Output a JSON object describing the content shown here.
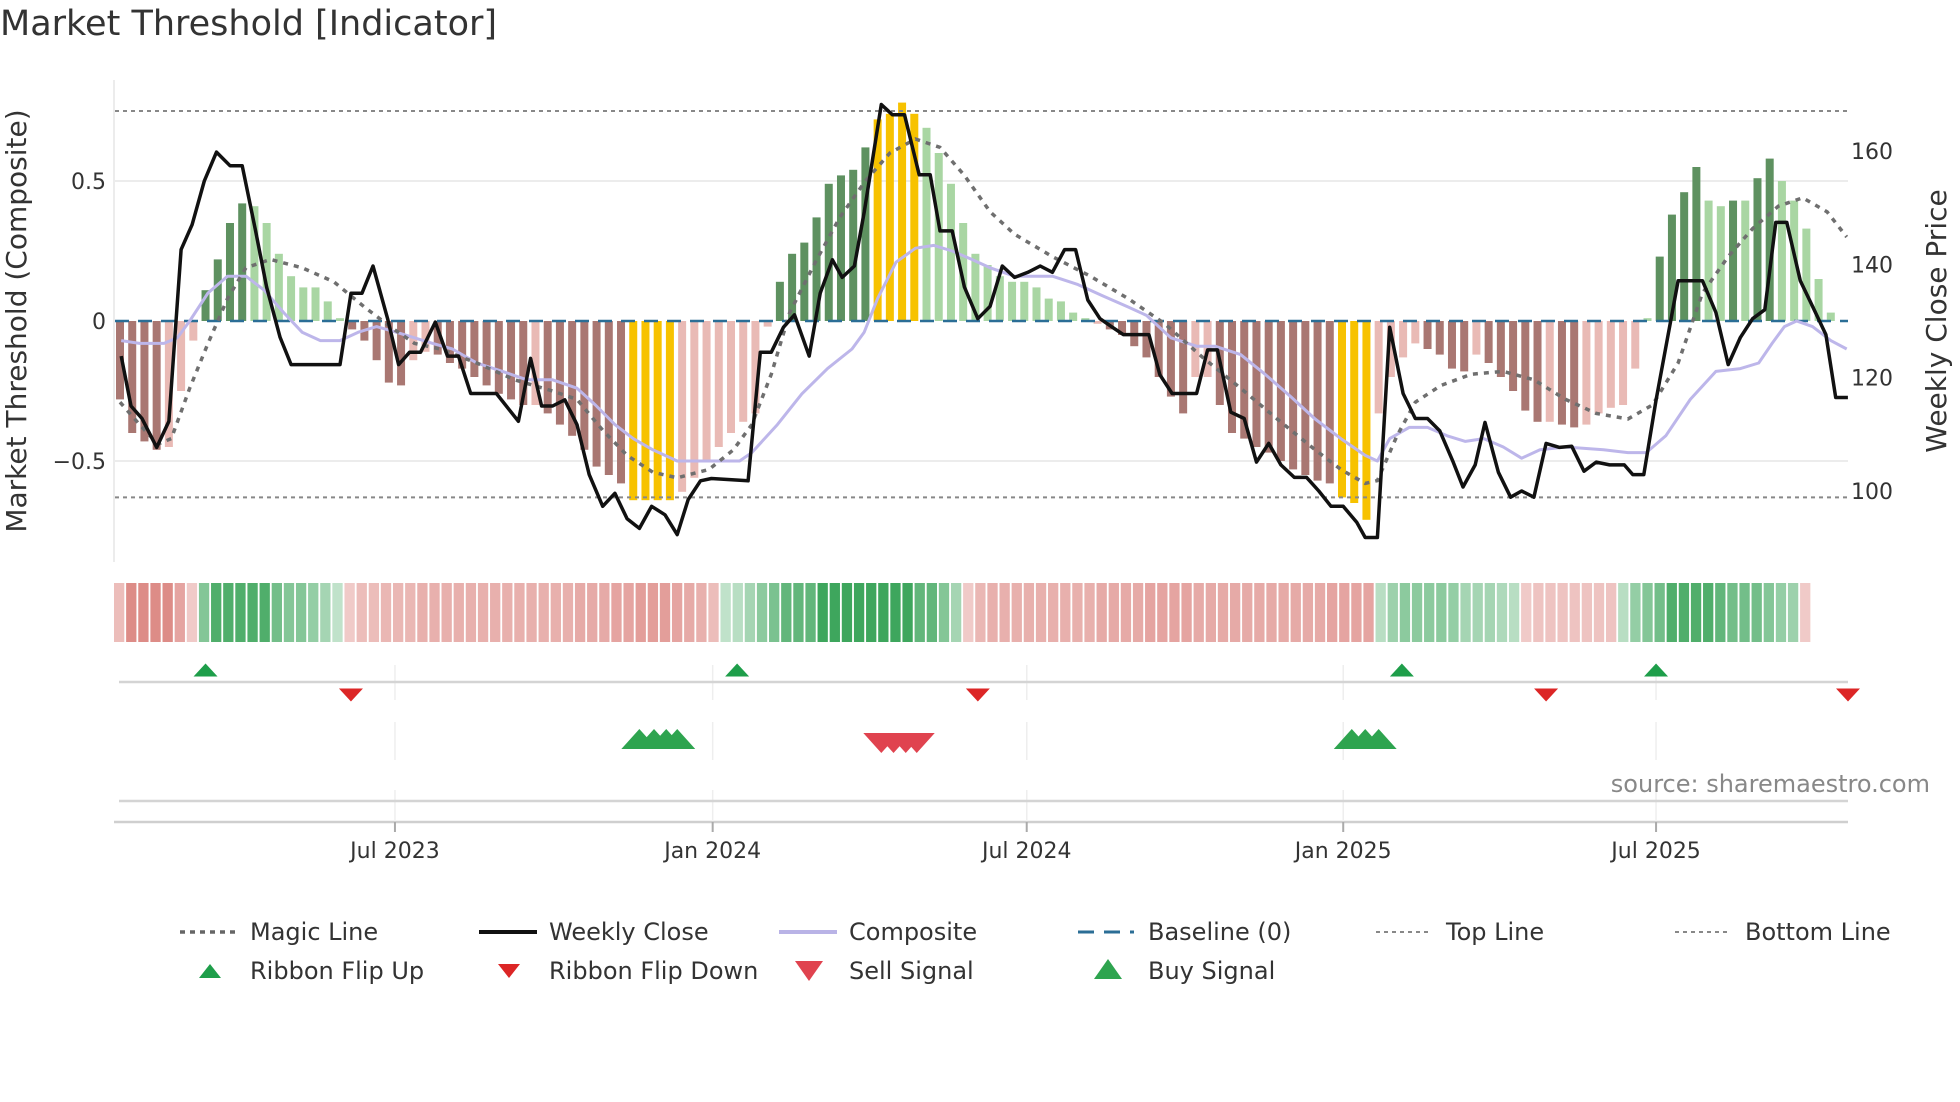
{
  "title": "Market Threshold [Indicator]",
  "source": "source: sharemaestro.com",
  "chart_data": {
    "type": "bar+line",
    "title": "Market Threshold [Indicator]",
    "ylabel": "Market Threshold (Composite)",
    "y2label": "Weekly Close Price",
    "ylim": [
      -0.85,
      0.85
    ],
    "y2lim": [
      88,
      170
    ],
    "yticks": [
      {
        "v": 0.5,
        "label": "0.5"
      },
      {
        "v": 0,
        "label": "0"
      },
      {
        "v": -0.5,
        "label": "−0.5"
      }
    ],
    "y2ticks": [
      {
        "v": 160,
        "label": "160"
      },
      {
        "v": 140,
        "label": "140"
      },
      {
        "v": 120,
        "label": "120"
      },
      {
        "v": 100,
        "label": "100"
      }
    ],
    "xticks": [
      {
        "week": 22.5,
        "label": "Jul 2023"
      },
      {
        "week": 48.5,
        "label": "Jan 2024"
      },
      {
        "week": 74.2,
        "label": "Jul 2024"
      },
      {
        "week": 100.1,
        "label": "Jan 2025"
      },
      {
        "week": 125.7,
        "label": "Jul 2025"
      }
    ],
    "top_line": 0.75,
    "bottom_line": -0.63,
    "baseline": 0,
    "extreme_thresholds": {
      "upper": 0.7,
      "lower": -0.62
    },
    "composite_bars": [
      -0.28,
      -0.4,
      -0.43,
      -0.46,
      -0.45,
      -0.25,
      -0.07,
      0.11,
      0.22,
      0.35,
      0.42,
      0.41,
      0.35,
      0.24,
      0.16,
      0.12,
      0.12,
      0.07,
      0.01,
      -0.03,
      -0.07,
      -0.14,
      -0.22,
      -0.23,
      -0.14,
      -0.11,
      -0.12,
      -0.15,
      -0.17,
      -0.2,
      -0.23,
      -0.26,
      -0.28,
      -0.3,
      -0.3,
      -0.33,
      -0.37,
      -0.41,
      -0.46,
      -0.52,
      -0.55,
      -0.58,
      -0.64,
      -0.64,
      -0.64,
      -0.64,
      -0.61,
      -0.56,
      -0.5,
      -0.45,
      -0.4,
      -0.36,
      -0.33,
      -0.02,
      0.14,
      0.24,
      0.28,
      0.37,
      0.49,
      0.52,
      0.54,
      0.62,
      0.72,
      0.74,
      0.78,
      0.74,
      0.69,
      0.6,
      0.49,
      0.35,
      0.24,
      0.2,
      0.16,
      0.14,
      0.14,
      0.12,
      0.08,
      0.07,
      0.03,
      0.01,
      -0.01,
      -0.03,
      -0.05,
      -0.09,
      -0.13,
      -0.2,
      -0.27,
      -0.33,
      -0.2,
      -0.2,
      -0.3,
      -0.4,
      -0.42,
      -0.45,
      -0.47,
      -0.5,
      -0.53,
      -0.55,
      -0.57,
      -0.58,
      -0.63,
      -0.65,
      -0.71,
      -0.33,
      -0.2,
      -0.13,
      -0.08,
      -0.1,
      -0.12,
      -0.17,
      -0.18,
      -0.12,
      -0.15,
      -0.2,
      -0.25,
      -0.32,
      -0.36,
      -0.36,
      -0.37,
      -0.38,
      -0.37,
      -0.33,
      -0.31,
      -0.3,
      -0.17,
      0.01,
      0.23,
      0.38,
      0.46,
      0.55,
      0.43,
      0.41,
      0.43,
      0.43,
      0.51,
      0.58,
      0.5,
      0.43,
      0.33,
      0.15,
      0.03
    ],
    "weekly_close": [
      [
        0.1,
        123.8
      ],
      [
        0.9,
        115.0
      ],
      [
        1.8,
        112.8
      ],
      [
        3.0,
        107.7
      ],
      [
        4.0,
        112.3
      ],
      [
        5.0,
        142.6
      ],
      [
        5.9,
        147.0
      ],
      [
        6.9,
        154.7
      ],
      [
        7.9,
        159.8
      ],
      [
        9.0,
        157.4
      ],
      [
        10.0,
        157.4
      ],
      [
        11.1,
        145.9
      ],
      [
        12.0,
        136.0
      ],
      [
        13.1,
        127.1
      ],
      [
        14.0,
        122.3
      ],
      [
        18.0,
        122.3
      ],
      [
        18.9,
        134.9
      ],
      [
        19.8,
        134.9
      ],
      [
        20.7,
        139.7
      ],
      [
        21.9,
        130.4
      ],
      [
        22.8,
        122.3
      ],
      [
        23.7,
        124.5
      ],
      [
        24.6,
        124.5
      ],
      [
        25.8,
        129.8
      ],
      [
        26.8,
        123.8
      ],
      [
        27.7,
        123.8
      ],
      [
        28.7,
        117.2
      ],
      [
        30.8,
        117.2
      ],
      [
        32.6,
        112.3
      ],
      [
        33.6,
        123.4
      ],
      [
        34.5,
        115.0
      ],
      [
        35.4,
        115.0
      ],
      [
        36.4,
        116.1
      ],
      [
        37.4,
        111.7
      ],
      [
        38.4,
        102.9
      ],
      [
        39.5,
        97.3
      ],
      [
        40.5,
        99.6
      ],
      [
        41.5,
        95.1
      ],
      [
        42.5,
        93.4
      ],
      [
        43.5,
        97.3
      ],
      [
        44.6,
        95.8
      ],
      [
        45.6,
        92.3
      ],
      [
        46.5,
        98.5
      ],
      [
        47.5,
        101.8
      ],
      [
        48.4,
        102.2
      ],
      [
        51.4,
        101.8
      ],
      [
        52.4,
        124.5
      ],
      [
        53.3,
        124.5
      ],
      [
        54.3,
        128.9
      ],
      [
        55.2,
        131.1
      ],
      [
        56.4,
        123.8
      ],
      [
        57.3,
        134.9
      ],
      [
        58.3,
        140.8
      ],
      [
        59.1,
        137.7
      ],
      [
        60.1,
        139.7
      ],
      [
        60.9,
        149.2
      ],
      [
        62.3,
        168.2
      ],
      [
        63.2,
        166.4
      ],
      [
        64.2,
        166.4
      ],
      [
        65.4,
        155.8
      ],
      [
        66.3,
        155.8
      ],
      [
        67.1,
        145.9
      ],
      [
        68.1,
        145.9
      ],
      [
        69.1,
        136.0
      ],
      [
        70.2,
        130.4
      ],
      [
        71.2,
        132.6
      ],
      [
        72.2,
        139.7
      ],
      [
        73.2,
        137.7
      ],
      [
        74.3,
        138.6
      ],
      [
        75.3,
        139.7
      ],
      [
        76.3,
        138.6
      ],
      [
        77.3,
        142.6
      ],
      [
        78.2,
        142.6
      ],
      [
        79.2,
        133.7
      ],
      [
        80.2,
        130.4
      ],
      [
        81.2,
        128.9
      ],
      [
        82.1,
        127.6
      ],
      [
        84.2,
        127.6
      ],
      [
        85.1,
        120.5
      ],
      [
        86.1,
        117.2
      ],
      [
        88.1,
        117.2
      ],
      [
        89.0,
        124.9
      ],
      [
        89.8,
        124.9
      ],
      [
        90.9,
        113.9
      ],
      [
        92.0,
        112.8
      ],
      [
        93.0,
        105.1
      ],
      [
        94.0,
        108.4
      ],
      [
        95.0,
        104.6
      ],
      [
        96.1,
        102.4
      ],
      [
        97.1,
        102.4
      ],
      [
        98.1,
        100.0
      ],
      [
        99.1,
        97.3
      ],
      [
        100.1,
        97.3
      ],
      [
        101.2,
        94.5
      ],
      [
        101.9,
        91.8
      ],
      [
        102.9,
        91.8
      ],
      [
        103.9,
        128.9
      ],
      [
        105.0,
        117.2
      ],
      [
        106.0,
        112.8
      ],
      [
        107.0,
        112.8
      ],
      [
        108.0,
        110.6
      ],
      [
        109.1,
        105.1
      ],
      [
        109.9,
        100.7
      ],
      [
        110.9,
        104.6
      ],
      [
        111.7,
        112.1
      ],
      [
        112.8,
        103.3
      ],
      [
        113.8,
        98.9
      ],
      [
        114.7,
        100.0
      ],
      [
        115.7,
        98.9
      ],
      [
        116.7,
        108.4
      ],
      [
        117.8,
        107.7
      ],
      [
        118.8,
        107.9
      ],
      [
        119.8,
        103.5
      ],
      [
        120.8,
        105.1
      ],
      [
        121.9,
        104.6
      ],
      [
        123.1,
        104.6
      ],
      [
        123.8,
        102.9
      ],
      [
        124.7,
        102.9
      ],
      [
        125.7,
        116.1
      ],
      [
        127.5,
        137.1
      ],
      [
        129.5,
        137.1
      ],
      [
        130.6,
        131.5
      ],
      [
        131.6,
        122.3
      ],
      [
        132.6,
        127.1
      ],
      [
        133.6,
        130.4
      ],
      [
        134.6,
        132.0
      ],
      [
        135.5,
        147.4
      ],
      [
        136.4,
        147.4
      ],
      [
        137.5,
        137.1
      ],
      [
        138.5,
        132.6
      ],
      [
        139.6,
        127.6
      ],
      [
        140.4,
        116.5
      ],
      [
        141.4,
        116.5
      ]
    ],
    "composite_line": [
      [
        0.1,
        -0.07
      ],
      [
        1.6,
        -0.08
      ],
      [
        3.6,
        -0.08
      ],
      [
        4.7,
        -0.06
      ],
      [
        5.7,
        0.0
      ],
      [
        7.2,
        0.1
      ],
      [
        8.8,
        0.16
      ],
      [
        10.3,
        0.16
      ],
      [
        11.8,
        0.11
      ],
      [
        13.4,
        0.03
      ],
      [
        14.9,
        -0.04
      ],
      [
        16.4,
        -0.07
      ],
      [
        18.0,
        -0.07
      ],
      [
        19.5,
        -0.04
      ],
      [
        21.0,
        -0.02
      ],
      [
        22.6,
        -0.04
      ],
      [
        24.1,
        -0.06
      ],
      [
        25.6,
        -0.08
      ],
      [
        27.2,
        -0.1
      ],
      [
        29.2,
        -0.15
      ],
      [
        31.3,
        -0.18
      ],
      [
        33.3,
        -0.21
      ],
      [
        35.4,
        -0.21
      ],
      [
        37.4,
        -0.24
      ],
      [
        38.9,
        -0.3
      ],
      [
        40.5,
        -0.37
      ],
      [
        42.0,
        -0.42
      ],
      [
        43.6,
        -0.46
      ],
      [
        45.6,
        -0.5
      ],
      [
        47.7,
        -0.5
      ],
      [
        50.7,
        -0.5
      ],
      [
        51.7,
        -0.47
      ],
      [
        53.8,
        -0.37
      ],
      [
        55.8,
        -0.26
      ],
      [
        57.9,
        -0.17
      ],
      [
        59.9,
        -0.1
      ],
      [
        60.9,
        -0.04
      ],
      [
        62.0,
        0.08
      ],
      [
        63.5,
        0.21
      ],
      [
        65.1,
        0.26
      ],
      [
        66.6,
        0.27
      ],
      [
        68.1,
        0.25
      ],
      [
        69.7,
        0.22
      ],
      [
        71.2,
        0.19
      ],
      [
        73.2,
        0.16
      ],
      [
        76.3,
        0.16
      ],
      [
        78.4,
        0.13
      ],
      [
        80.4,
        0.09
      ],
      [
        82.5,
        0.05
      ],
      [
        84.0,
        0.02
      ],
      [
        86.0,
        -0.06
      ],
      [
        88.1,
        -0.09
      ],
      [
        89.6,
        -0.09
      ],
      [
        91.7,
        -0.12
      ],
      [
        93.7,
        -0.19
      ],
      [
        95.8,
        -0.27
      ],
      [
        97.8,
        -0.35
      ],
      [
        99.9,
        -0.42
      ],
      [
        101.9,
        -0.48
      ],
      [
        102.9,
        -0.5
      ],
      [
        103.9,
        -0.42
      ],
      [
        105.5,
        -0.38
      ],
      [
        107.0,
        -0.38
      ],
      [
        108.6,
        -0.41
      ],
      [
        110.1,
        -0.43
      ],
      [
        111.6,
        -0.42
      ],
      [
        113.2,
        -0.45
      ],
      [
        114.7,
        -0.49
      ],
      [
        116.2,
        -0.46
      ],
      [
        118.3,
        -0.45
      ],
      [
        121.4,
        -0.46
      ],
      [
        123.4,
        -0.47
      ],
      [
        124.9,
        -0.47
      ],
      [
        126.5,
        -0.41
      ],
      [
        128.5,
        -0.28
      ],
      [
        130.6,
        -0.18
      ],
      [
        132.6,
        -0.17
      ],
      [
        134.1,
        -0.15
      ],
      [
        135.2,
        -0.08
      ],
      [
        136.2,
        -0.02
      ],
      [
        137.2,
        0.0
      ],
      [
        138.5,
        -0.02
      ],
      [
        140.0,
        -0.07
      ],
      [
        141.3,
        -0.1
      ]
    ],
    "magic_line": [
      [
        0,
        -0.29
      ],
      [
        1.6,
        -0.37
      ],
      [
        3.1,
        -0.44
      ],
      [
        4.2,
        -0.42
      ],
      [
        5.7,
        -0.24
      ],
      [
        7.2,
        -0.08
      ],
      [
        8.8,
        0.08
      ],
      [
        10.3,
        0.19
      ],
      [
        12.3,
        0.22
      ],
      [
        14.9,
        0.19
      ],
      [
        17.5,
        0.14
      ],
      [
        20.0,
        0.05
      ],
      [
        22.1,
        -0.02
      ],
      [
        24.1,
        -0.08
      ],
      [
        26.2,
        -0.1
      ],
      [
        29.2,
        -0.15
      ],
      [
        32.3,
        -0.21
      ],
      [
        35.4,
        -0.25
      ],
      [
        37.4,
        -0.28
      ],
      [
        39.5,
        -0.39
      ],
      [
        41.5,
        -0.48
      ],
      [
        43.6,
        -0.54
      ],
      [
        45.6,
        -0.56
      ],
      [
        48.2,
        -0.53
      ],
      [
        50.2,
        -0.46
      ],
      [
        51.7,
        -0.37
      ],
      [
        53.3,
        -0.19
      ],
      [
        54.8,
        0.03
      ],
      [
        56.9,
        0.21
      ],
      [
        58.9,
        0.37
      ],
      [
        61.0,
        0.5
      ],
      [
        63.0,
        0.6
      ],
      [
        65.1,
        0.65
      ],
      [
        67.1,
        0.62
      ],
      [
        69.1,
        0.52
      ],
      [
        71.2,
        0.39
      ],
      [
        73.2,
        0.31
      ],
      [
        76.3,
        0.23
      ],
      [
        79.4,
        0.16
      ],
      [
        82.5,
        0.08
      ],
      [
        85.5,
        -0.01
      ],
      [
        88.6,
        -0.13
      ],
      [
        91.7,
        -0.24
      ],
      [
        94.7,
        -0.35
      ],
      [
        97.8,
        -0.46
      ],
      [
        99.9,
        -0.53
      ],
      [
        101.9,
        -0.58
      ],
      [
        102.9,
        -0.57
      ],
      [
        104.5,
        -0.41
      ],
      [
        106.0,
        -0.29
      ],
      [
        108.1,
        -0.23
      ],
      [
        110.6,
        -0.19
      ],
      [
        113.2,
        -0.18
      ],
      [
        115.7,
        -0.21
      ],
      [
        118.3,
        -0.28
      ],
      [
        120.8,
        -0.33
      ],
      [
        123.4,
        -0.35
      ],
      [
        125.4,
        -0.3
      ],
      [
        127.5,
        -0.15
      ],
      [
        129.5,
        0.1
      ],
      [
        131.6,
        0.23
      ],
      [
        133.6,
        0.33
      ],
      [
        135.7,
        0.41
      ],
      [
        137.7,
        0.44
      ],
      [
        139.7,
        0.39
      ],
      [
        141.3,
        0.3
      ]
    ],
    "ribbon": [
      -0.3,
      -0.7,
      -0.7,
      -0.7,
      -0.7,
      -0.5,
      -0.2,
      0.5,
      0.8,
      0.8,
      0.8,
      0.8,
      0.8,
      0.6,
      0.5,
      0.5,
      0.4,
      0.3,
      0.15,
      -0.2,
      -0.3,
      -0.3,
      -0.35,
      -0.35,
      -0.35,
      -0.4,
      -0.4,
      -0.4,
      -0.4,
      -0.4,
      -0.4,
      -0.4,
      -0.4,
      -0.4,
      -0.4,
      -0.4,
      -0.4,
      -0.4,
      -0.45,
      -0.45,
      -0.45,
      -0.5,
      -0.5,
      -0.55,
      -0.55,
      -0.55,
      -0.5,
      -0.45,
      -0.4,
      -0.3,
      0.15,
      0.2,
      0.3,
      0.45,
      0.55,
      0.7,
      0.7,
      0.7,
      0.9,
      0.9,
      0.9,
      0.9,
      0.9,
      0.9,
      0.9,
      0.9,
      0.7,
      0.7,
      0.5,
      0.3,
      -0.2,
      -0.35,
      -0.4,
      -0.4,
      -0.4,
      -0.4,
      -0.4,
      -0.4,
      -0.4,
      -0.4,
      -0.4,
      -0.45,
      -0.45,
      -0.45,
      -0.45,
      -0.5,
      -0.5,
      -0.5,
      -0.5,
      -0.45,
      -0.45,
      -0.45,
      -0.45,
      -0.45,
      -0.45,
      -0.45,
      -0.45,
      -0.45,
      -0.45,
      -0.45,
      -0.5,
      -0.5,
      -0.5,
      -0.5,
      0.2,
      0.35,
      0.45,
      0.45,
      0.45,
      0.45,
      0.4,
      0.3,
      0.3,
      0.3,
      0.25,
      0.2,
      -0.2,
      -0.25,
      -0.25,
      -0.25,
      -0.25,
      -0.25,
      -0.25,
      -0.25,
      0.2,
      0.4,
      0.5,
      0.6,
      0.8,
      0.8,
      0.8,
      0.8,
      0.7,
      0.6,
      0.6,
      0.6,
      0.5,
      0.4,
      0.35,
      -0.2
    ],
    "ribbon_flip_up": [
      7.0,
      50.5,
      104.9,
      125.7
    ],
    "ribbon_flip_down": [
      18.9,
      70.2,
      116.7,
      141.5
    ],
    "buy_signals": [
      42.5,
      43.7,
      44.7,
      45.6,
      100.8,
      101.9,
      103.0
    ],
    "sell_signals": [
      62.3,
      63.3,
      64.3,
      65.2
    ],
    "legend": [
      {
        "label": "Magic Line",
        "kind": "dotted",
        "color": "#666666"
      },
      {
        "label": "Weekly Close",
        "kind": "solid",
        "color": "#111111"
      },
      {
        "label": "Composite",
        "kind": "solid-light",
        "color": "#b9b3e6"
      },
      {
        "label": "Baseline (0)",
        "kind": "dashed",
        "color": "#2b6e96"
      },
      {
        "label": "Top Line",
        "kind": "dotted-thin",
        "color": "#888888"
      },
      {
        "label": "Bottom Line",
        "kind": "dotted-thin",
        "color": "#888888"
      },
      {
        "label": "Ribbon Flip Up",
        "kind": "tri-up-small",
        "color": "#1e9e4a"
      },
      {
        "label": "Ribbon Flip Down",
        "kind": "tri-down-small",
        "color": "#dc2626"
      },
      {
        "label": "Sell Signal",
        "kind": "tri-down",
        "color": "#e0434f"
      },
      {
        "label": "Buy Signal",
        "kind": "tri-up",
        "color": "#2ea44f"
      }
    ],
    "colors": {
      "bar_up_strong": "#5e9160",
      "bar_up_weak": "#a9d6a3",
      "bar_down_strong": "#a97772",
      "bar_down_weak": "#e9bab5",
      "bar_extreme": "#f7c200",
      "ribbon_green": "#2e9e4f",
      "ribbon_red": "#d2655f"
    }
  }
}
